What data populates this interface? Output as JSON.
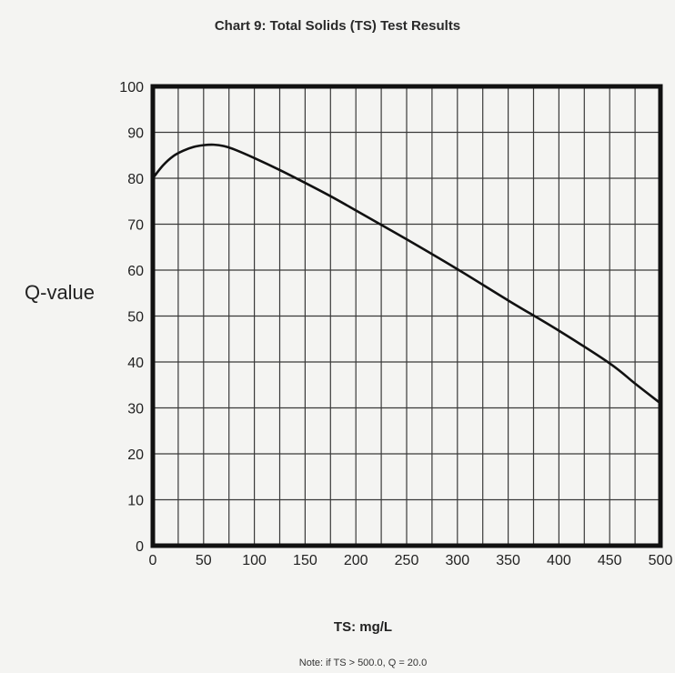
{
  "chart_data": {
    "type": "line",
    "title": "Chart 9: Total Solids (TS) Test Results",
    "xlabel": "TS: mg/L",
    "ylabel": "Q-value",
    "note": "Note: if TS > 500.0, Q = 20.0",
    "xlim": [
      0,
      500
    ],
    "ylim": [
      0,
      100
    ],
    "xticks": [
      0,
      50,
      100,
      150,
      200,
      250,
      300,
      350,
      400,
      450,
      500
    ],
    "yticks": [
      0,
      10,
      20,
      30,
      40,
      50,
      60,
      70,
      80,
      90,
      100
    ],
    "grid": true,
    "series": [
      {
        "x": [
          0,
          10,
          20,
          30,
          40,
          50,
          60,
          70,
          80,
          100,
          125,
          150,
          175,
          200,
          250,
          300,
          350,
          400,
          450,
          475,
          500
        ],
        "y": [
          80,
          82.8,
          84.8,
          86.0,
          86.8,
          87.2,
          87.3,
          87.0,
          86.3,
          84.4,
          81.8,
          79.0,
          76.1,
          73.0,
          66.7,
          60.2,
          53.4,
          46.8,
          39.7,
          35.3,
          31
        ]
      }
    ],
    "colors": {
      "line": "#111111",
      "grid": "#3a3a3a",
      "frame": "#111111"
    }
  }
}
